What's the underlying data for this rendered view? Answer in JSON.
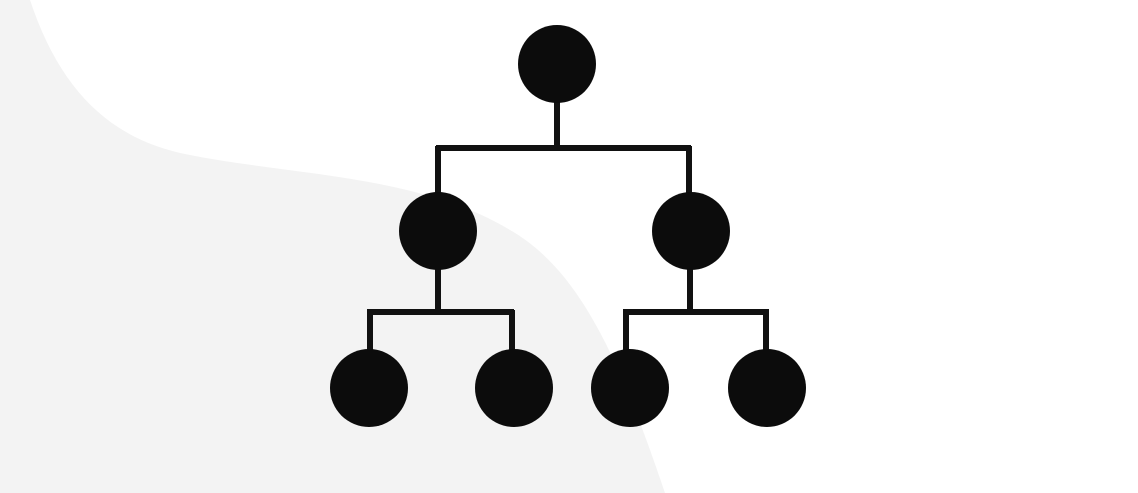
{
  "diagram": {
    "type": "tree",
    "colors": {
      "background": "#ffffff",
      "background_shape": "#f3f3f3",
      "node": "#0c0c0c",
      "connector": "#111111"
    },
    "nodes": [
      {
        "id": "root",
        "level": 0
      },
      {
        "id": "left-child",
        "level": 1,
        "parent": "root"
      },
      {
        "id": "right-child",
        "level": 1,
        "parent": "root"
      },
      {
        "id": "left-left-leaf",
        "level": 2,
        "parent": "left-child"
      },
      {
        "id": "left-right-leaf",
        "level": 2,
        "parent": "left-child"
      },
      {
        "id": "right-left-leaf",
        "level": 2,
        "parent": "right-child"
      },
      {
        "id": "right-right-leaf",
        "level": 2,
        "parent": "right-child"
      }
    ]
  }
}
